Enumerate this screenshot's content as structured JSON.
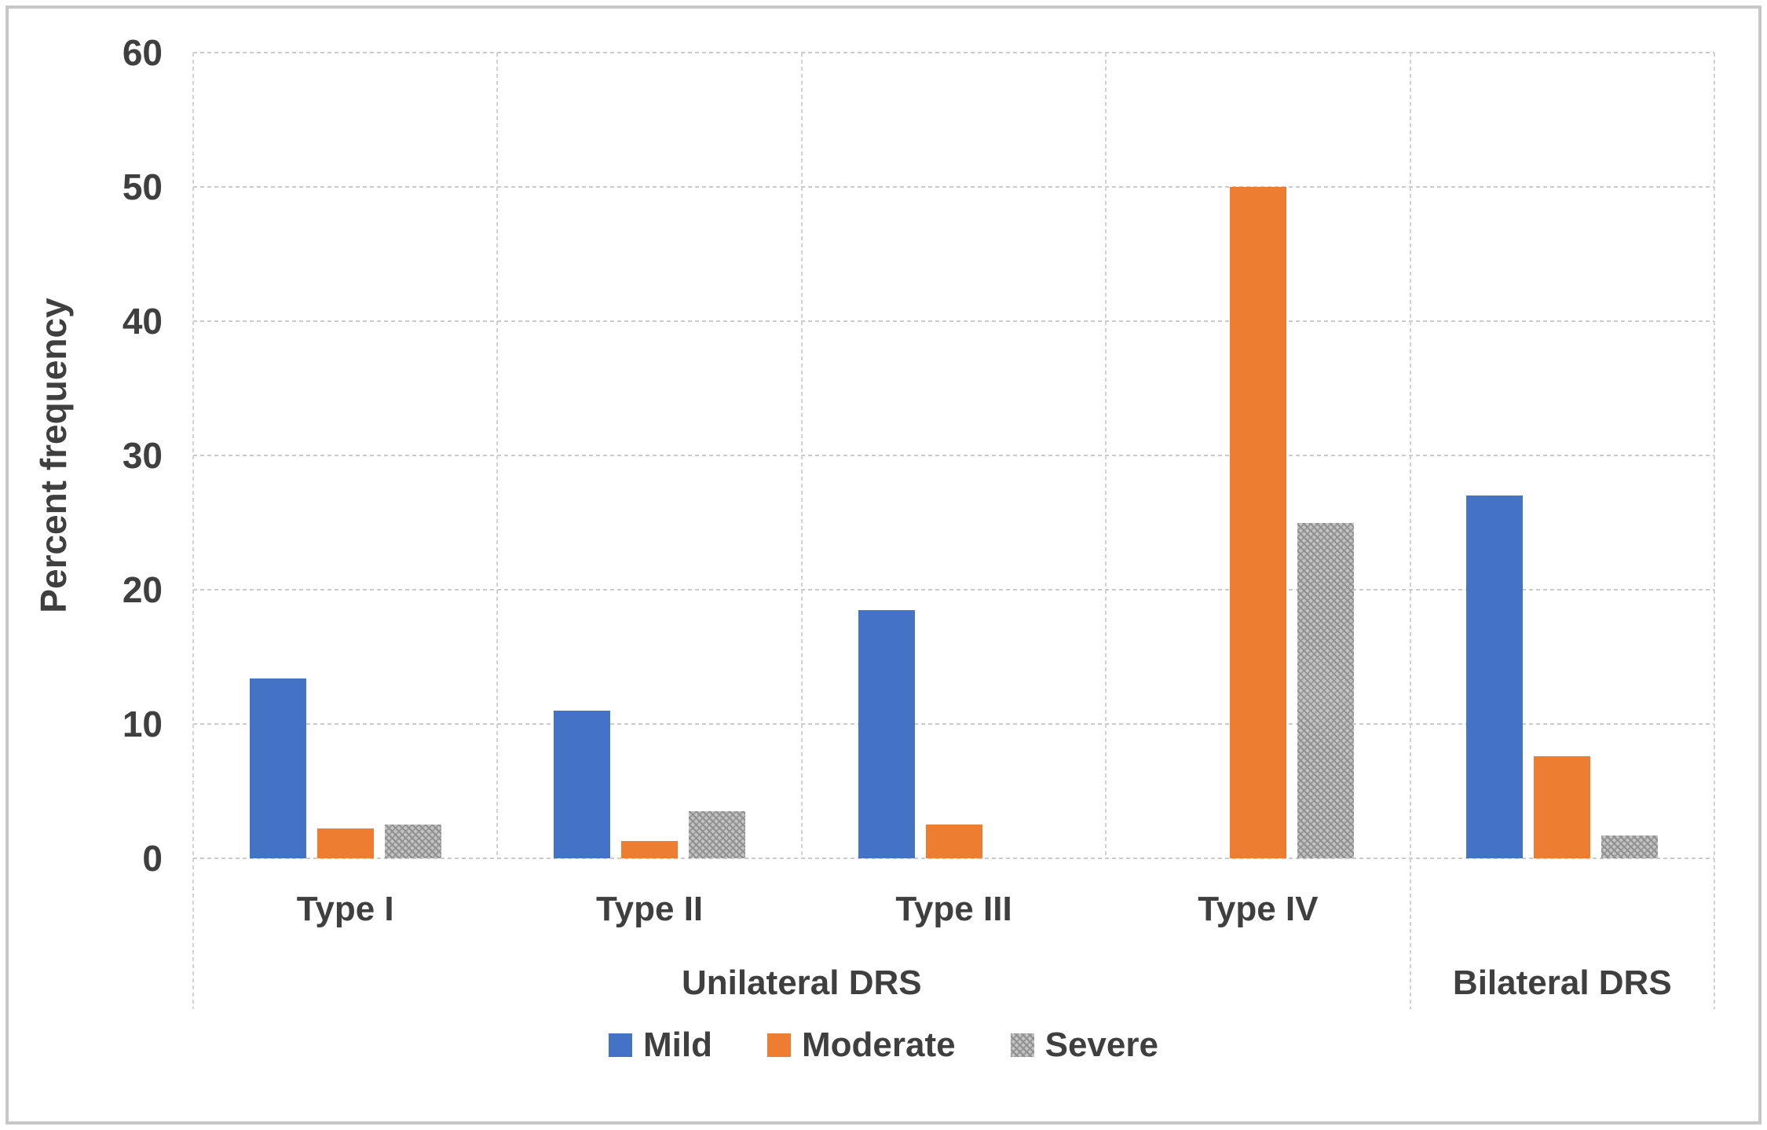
{
  "chart_data": {
    "type": "bar",
    "title": "",
    "ylabel": "Percent frequency",
    "ylim": [
      0,
      60
    ],
    "yticks": [
      0,
      10,
      20,
      30,
      40,
      50,
      60
    ],
    "grid": true,
    "legend_position": "bottom",
    "groups": [
      {
        "label": "Type I",
        "section": "Unilateral DRS"
      },
      {
        "label": "Type II",
        "section": "Unilateral DRS"
      },
      {
        "label": "Type III",
        "section": "Unilateral DRS"
      },
      {
        "label": "Type IV",
        "section": "Unilateral DRS"
      },
      {
        "label": "",
        "section": "Bilateral DRS"
      }
    ],
    "sections": [
      {
        "label": "Unilateral DRS",
        "span": 4
      },
      {
        "label": "Bilateral DRS",
        "span": 1
      }
    ],
    "series": [
      {
        "name": "Mild",
        "color": "#4472C4",
        "fill": "solid",
        "values": [
          13.4,
          11.0,
          18.5,
          0,
          27.0
        ]
      },
      {
        "name": "Moderate",
        "color": "#ED7D31",
        "fill": "solid",
        "values": [
          2.2,
          1.3,
          2.5,
          50.0,
          7.6
        ]
      },
      {
        "name": "Severe",
        "color": "#A6A6A6",
        "fill": "hatch",
        "values": [
          2.5,
          3.5,
          0,
          25.0,
          1.7
        ]
      }
    ],
    "axis_text_color": "#3f3f3f",
    "gridline_color": "#cbcbcb"
  }
}
